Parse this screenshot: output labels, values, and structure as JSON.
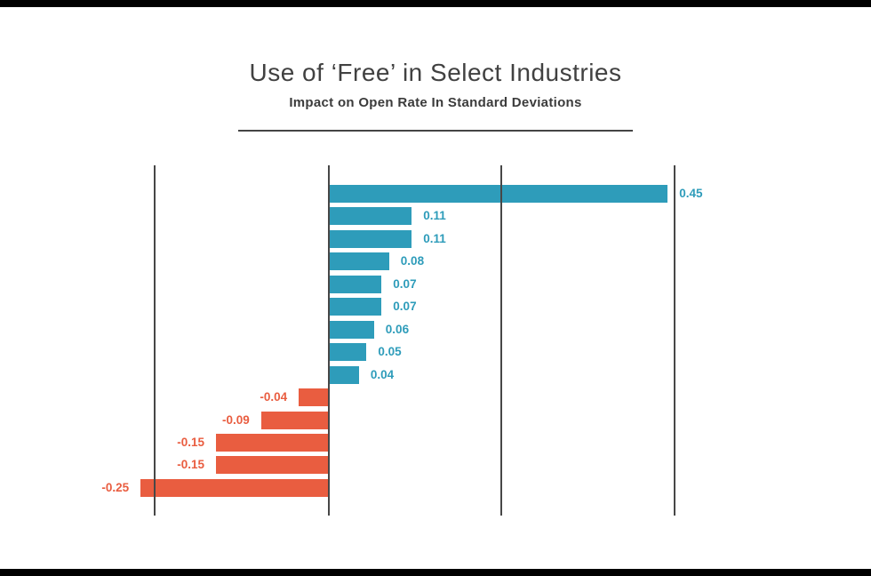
{
  "header": {
    "title": "Use of ‘Free’ in Select Industries",
    "subtitle": "Impact on Open Rate In Standard Deviations"
  },
  "chart_data": {
    "type": "bar",
    "orientation": "horizontal",
    "title": "Use of ‘Free’ in Select Industries",
    "subtitle": "Impact on Open Rate In Standard Deviations",
    "values": [
      0.45,
      0.11,
      0.11,
      0.08,
      0.07,
      0.07,
      0.06,
      0.05,
      0.04,
      -0.04,
      -0.09,
      -0.15,
      -0.15,
      -0.25
    ],
    "value_labels": [
      "0.45",
      "0.11",
      "0.11",
      "0.08",
      "0.07",
      "0.07",
      "0.06",
      "0.05",
      "0.04",
      "-0.04",
      "-0.09",
      "-0.15",
      "-0.15",
      "-0.25"
    ],
    "xlim": [
      -0.32,
      0.49
    ],
    "gridline_values_est": [
      -0.23,
      0,
      0.23,
      0.46
    ],
    "grid": "vertical-only",
    "legend": "none",
    "categories_shown": false,
    "positive_color": "#2E9CBA",
    "negative_color": "#E95D40"
  },
  "colors": {
    "positive": "#2E9CBA",
    "negative": "#E95D40",
    "title_color": "#414141",
    "subtitle_color": "#3B3B3B",
    "divider_color": "#454545",
    "grid_color": "#474747",
    "strip_color": "#000000",
    "background": "#FFFFFF"
  }
}
